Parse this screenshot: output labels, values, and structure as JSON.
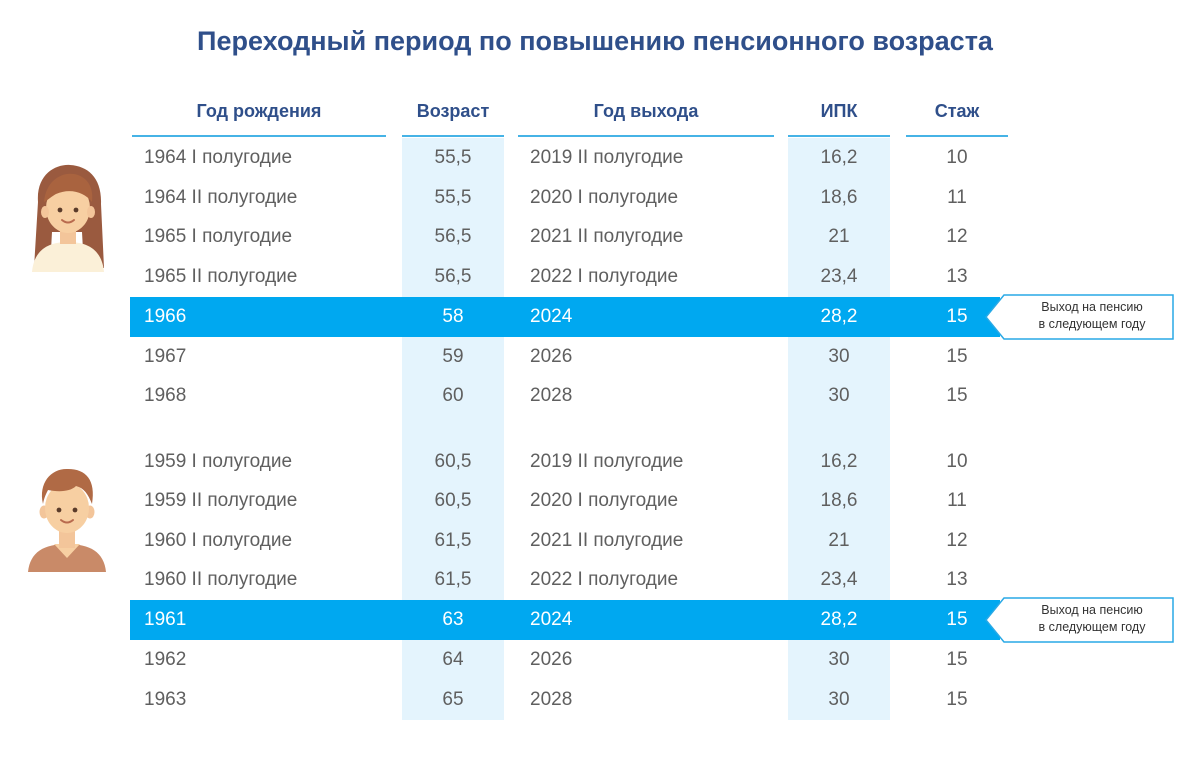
{
  "title": "Переходный период по повышению пенсионного возраста",
  "columns": {
    "birth_year": "Год рождения",
    "age": "Возраст",
    "exit_year": "Год выхода",
    "ipk": "ИПК",
    "stazh": "Стаж"
  },
  "women": {
    "rows": [
      {
        "birth": "1964 I полугодие",
        "age": "55,5",
        "exit": "2019 II полугодие",
        "ipk": "16,2",
        "stazh": "10"
      },
      {
        "birth": "1964 II полугодие",
        "age": "55,5",
        "exit": "2020 I полугодие",
        "ipk": "18,6",
        "stazh": "11"
      },
      {
        "birth": "1965 I полугодие",
        "age": "56,5",
        "exit": "2021 II полугодие",
        "ipk": "21",
        "stazh": "12"
      },
      {
        "birth": "1965 II полугодие",
        "age": "56,5",
        "exit": "2022 I полугодие",
        "ipk": "23,4",
        "stazh": "13"
      },
      {
        "birth": "1966",
        "age": "58",
        "exit": "2024",
        "ipk": "28,2",
        "stazh": "15"
      },
      {
        "birth": "1967",
        "age": "59",
        "exit": "2026",
        "ipk": "30",
        "stazh": "15"
      },
      {
        "birth": "1968",
        "age": "60",
        "exit": "2028",
        "ipk": "30",
        "stazh": "15"
      }
    ],
    "callout_line1": "Выход на пенсию",
    "callout_line2": "в следующем году"
  },
  "men": {
    "rows": [
      {
        "birth": "1959 I полугодие",
        "age": "60,5",
        "exit": "2019 II полугодие",
        "ipk": "16,2",
        "stazh": "10"
      },
      {
        "birth": "1959 II полугодие",
        "age": "60,5",
        "exit": "2020 I полугодие",
        "ipk": "18,6",
        "stazh": "11"
      },
      {
        "birth": "1960 I полугодие",
        "age": "61,5",
        "exit": "2021 II полугодие",
        "ipk": "21",
        "stazh": "12"
      },
      {
        "birth": "1960 II полугодие",
        "age": "61,5",
        "exit": "2022 I полугодие",
        "ipk": "23,4",
        "stazh": "13"
      },
      {
        "birth": "1961",
        "age": "63",
        "exit": "2024",
        "ipk": "28,2",
        "stazh": "15"
      },
      {
        "birth": "1962",
        "age": "64",
        "exit": "2026",
        "ipk": "30",
        "stazh": "15"
      },
      {
        "birth": "1963",
        "age": "65",
        "exit": "2028",
        "ipk": "30",
        "stazh": "15"
      }
    ],
    "callout_line1": "Выход на пенсию",
    "callout_line2": "в следующем году"
  },
  "icons": {
    "women_avatar": "woman-avatar-icon",
    "men_avatar": "man-avatar-icon"
  },
  "colors": {
    "title": "#2f4f8a",
    "highlight_row": "#00a8f0",
    "column_tint": "#e4f4fd",
    "header_underline": "#46b3e6"
  }
}
